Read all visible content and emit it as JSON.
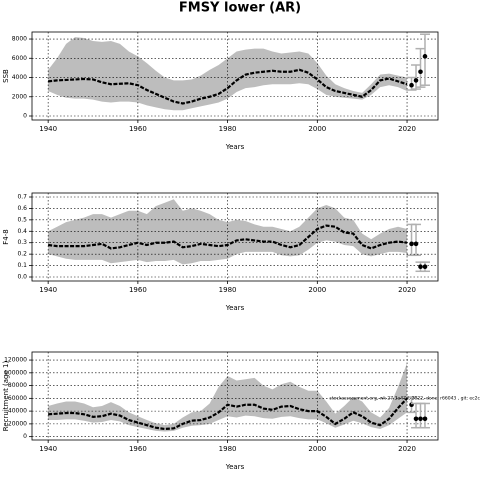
{
  "title": "FMSY lower (AR)",
  "chart_data": [
    {
      "type": "line",
      "ylabel": "SSB",
      "xlabel": "Years",
      "band_color": "#bdbdbd",
      "line_color": "#000000",
      "forecast_color": "#b0b0b0",
      "grid": true,
      "xlim": [
        1936.4,
        2026.9
      ],
      "xticks": [
        1940,
        1960,
        1980,
        2000,
        2020
      ],
      "ylim": [
        -415,
        8730
      ],
      "yticks": [
        0,
        2000,
        4000,
        6000,
        8000
      ],
      "x": [
        1940,
        1942,
        1944,
        1946,
        1948,
        1950,
        1952,
        1954,
        1956,
        1958,
        1960,
        1962,
        1964,
        1966,
        1968,
        1970,
        1972,
        1974,
        1976,
        1978,
        1980,
        1982,
        1984,
        1986,
        1988,
        1990,
        1992,
        1994,
        1996,
        1998,
        2000,
        2002,
        2004,
        2006,
        2008,
        2010,
        2012,
        2014,
        2016,
        2018,
        2020
      ],
      "values": [
        3600,
        3700,
        3750,
        3800,
        3850,
        3800,
        3500,
        3300,
        3350,
        3400,
        3200,
        2700,
        2300,
        1900,
        1500,
        1300,
        1500,
        1800,
        2000,
        2300,
        2900,
        3700,
        4300,
        4500,
        4600,
        4700,
        4600,
        4600,
        4800,
        4500,
        3800,
        3000,
        2600,
        2400,
        2200,
        2000,
        2700,
        3700,
        3900,
        3600,
        3300
      ],
      "upper": [
        4800,
        6000,
        7500,
        8200,
        8100,
        7800,
        7700,
        7800,
        7500,
        6700,
        6200,
        5500,
        4700,
        4000,
        3700,
        3700,
        3800,
        4200,
        4800,
        5300,
        6000,
        6700,
        6900,
        7000,
        7000,
        6700,
        6500,
        6600,
        6700,
        6500,
        5500,
        4200,
        3300,
        2900,
        2600,
        2400,
        3300,
        4300,
        4400,
        4200,
        4000
      ],
      "lower": [
        2600,
        2200,
        1900,
        1800,
        1800,
        1700,
        1500,
        1400,
        1500,
        1500,
        1400,
        1100,
        900,
        700,
        600,
        600,
        800,
        1000,
        1200,
        1400,
        1800,
        2500,
        2900,
        3000,
        3200,
        3300,
        3300,
        3300,
        3400,
        3300,
        2800,
        2200,
        2000,
        1900,
        1800,
        1700,
        2200,
        3000,
        3200,
        3000,
        2600
      ],
      "forecast": {
        "x": [
          2021,
          2022,
          2023,
          2024
        ],
        "values": [
          3200,
          3700,
          4600,
          6200
        ],
        "lower": [
          2700,
          2800,
          3000,
          3200
        ],
        "upper": [
          4000,
          5300,
          7000,
          8500
        ]
      }
    },
    {
      "type": "line",
      "ylabel": "F4-8",
      "xlabel": "Years",
      "band_color": "#bdbdbd",
      "line_color": "#000000",
      "forecast_color": "#b0b0b0",
      "grid": true,
      "xlim": [
        1936.4,
        2026.9
      ],
      "xticks": [
        1940,
        1960,
        1980,
        2000,
        2020
      ],
      "ylim": [
        -0.035,
        0.735
      ],
      "yticks": [
        {
          "value": 0,
          "label": "0.0"
        },
        0.1,
        0.2,
        0.3,
        0.4,
        0.5,
        0.6,
        0.7
      ],
      "x": [
        1940,
        1942,
        1944,
        1946,
        1948,
        1950,
        1952,
        1954,
        1956,
        1958,
        1960,
        1962,
        1964,
        1966,
        1968,
        1970,
        1972,
        1974,
        1976,
        1978,
        1980,
        1982,
        1984,
        1986,
        1988,
        1990,
        1992,
        1994,
        1996,
        1998,
        2000,
        2002,
        2004,
        2006,
        2008,
        2010,
        2012,
        2014,
        2016,
        2018,
        2020
      ],
      "values": [
        0.28,
        0.27,
        0.27,
        0.27,
        0.27,
        0.28,
        0.29,
        0.25,
        0.26,
        0.28,
        0.3,
        0.28,
        0.3,
        0.3,
        0.31,
        0.26,
        0.27,
        0.29,
        0.28,
        0.27,
        0.28,
        0.32,
        0.33,
        0.32,
        0.31,
        0.31,
        0.28,
        0.26,
        0.28,
        0.35,
        0.42,
        0.45,
        0.44,
        0.39,
        0.38,
        0.28,
        0.25,
        0.28,
        0.3,
        0.31,
        0.3
      ],
      "upper": [
        0.4,
        0.44,
        0.48,
        0.5,
        0.52,
        0.55,
        0.55,
        0.52,
        0.55,
        0.58,
        0.58,
        0.55,
        0.62,
        0.65,
        0.68,
        0.58,
        0.6,
        0.58,
        0.55,
        0.5,
        0.48,
        0.5,
        0.49,
        0.46,
        0.44,
        0.44,
        0.42,
        0.4,
        0.44,
        0.52,
        0.6,
        0.63,
        0.6,
        0.52,
        0.5,
        0.38,
        0.33,
        0.38,
        0.42,
        0.44,
        0.42
      ],
      "lower": [
        0.2,
        0.18,
        0.16,
        0.15,
        0.15,
        0.15,
        0.15,
        0.12,
        0.13,
        0.14,
        0.15,
        0.13,
        0.14,
        0.14,
        0.15,
        0.11,
        0.12,
        0.14,
        0.14,
        0.15,
        0.16,
        0.2,
        0.22,
        0.22,
        0.22,
        0.22,
        0.19,
        0.18,
        0.19,
        0.24,
        0.3,
        0.32,
        0.31,
        0.28,
        0.27,
        0.2,
        0.18,
        0.2,
        0.22,
        0.22,
        0.21
      ],
      "forecast": {
        "x": [
          2021,
          2022,
          2023,
          2024
        ],
        "values": [
          0.29,
          0.29,
          0.09,
          0.09
        ],
        "lower": [
          0.19,
          0.19,
          0.05,
          0.05
        ],
        "upper": [
          0.46,
          0.46,
          0.13,
          0.13
        ]
      }
    },
    {
      "type": "line",
      "ylabel": "Recruitment (age 1)",
      "xlabel": "Years",
      "band_color": "#bdbdbd",
      "line_color": "#000000",
      "forecast_color": "#b0b0b0",
      "grid": true,
      "annotation": "stockassessment.org, wk 27.3a47d, 2022, done: r66043 , git: ec2c",
      "xlim": [
        1936.4,
        2026.9
      ],
      "xticks": [
        1940,
        1960,
        1980,
        2000,
        2020
      ],
      "ylim": [
        -5260,
        132630
      ],
      "yticks": [
        0,
        20000,
        40000,
        60000,
        80000,
        100000,
        120000
      ],
      "x": [
        1940,
        1942,
        1944,
        1946,
        1948,
        1950,
        1952,
        1954,
        1956,
        1958,
        1960,
        1962,
        1964,
        1966,
        1968,
        1970,
        1972,
        1974,
        1976,
        1978,
        1980,
        1982,
        1984,
        1986,
        1988,
        1990,
        1992,
        1994,
        1996,
        1998,
        2000,
        2002,
        2004,
        2006,
        2008,
        2010,
        2012,
        2014,
        2016,
        2018,
        2020
      ],
      "values": [
        35000,
        36000,
        37000,
        37000,
        35000,
        31000,
        32000,
        36000,
        33000,
        26000,
        22000,
        18000,
        14000,
        12000,
        13000,
        20000,
        25000,
        26000,
        30000,
        38000,
        50000,
        47000,
        50000,
        50000,
        44000,
        42000,
        47000,
        48000,
        43000,
        40000,
        40000,
        31000,
        20000,
        28000,
        38000,
        32000,
        22000,
        18000,
        28000,
        45000,
        60000
      ],
      "upper": [
        48000,
        52000,
        55000,
        55000,
        52000,
        46000,
        48000,
        54000,
        48000,
        38000,
        32000,
        26000,
        21000,
        18000,
        20000,
        30000,
        38000,
        40000,
        52000,
        78000,
        95000,
        88000,
        90000,
        92000,
        80000,
        74000,
        82000,
        86000,
        78000,
        72000,
        72000,
        55000,
        36000,
        48000,
        62000,
        55000,
        38000,
        30000,
        45000,
        78000,
        115000
      ],
      "lower": [
        26000,
        26000,
        27000,
        27000,
        25000,
        22000,
        23000,
        26000,
        24000,
        18000,
        15000,
        12000,
        9000,
        8000,
        9000,
        14000,
        17000,
        18000,
        20000,
        26000,
        32000,
        30000,
        33000,
        32000,
        29000,
        28000,
        31000,
        32000,
        29000,
        27000,
        27000,
        21000,
        14000,
        19000,
        25000,
        21000,
        15000,
        12000,
        18000,
        28000,
        38000
      ],
      "forecast": {
        "x": [
          2021,
          2022,
          2023,
          2024
        ],
        "values": [
          50000,
          28000,
          28000,
          28000
        ],
        "lower": [
          38000,
          14000,
          14000,
          14000
        ],
        "upper": [
          62000,
          52000,
          52000,
          52000
        ]
      }
    }
  ]
}
